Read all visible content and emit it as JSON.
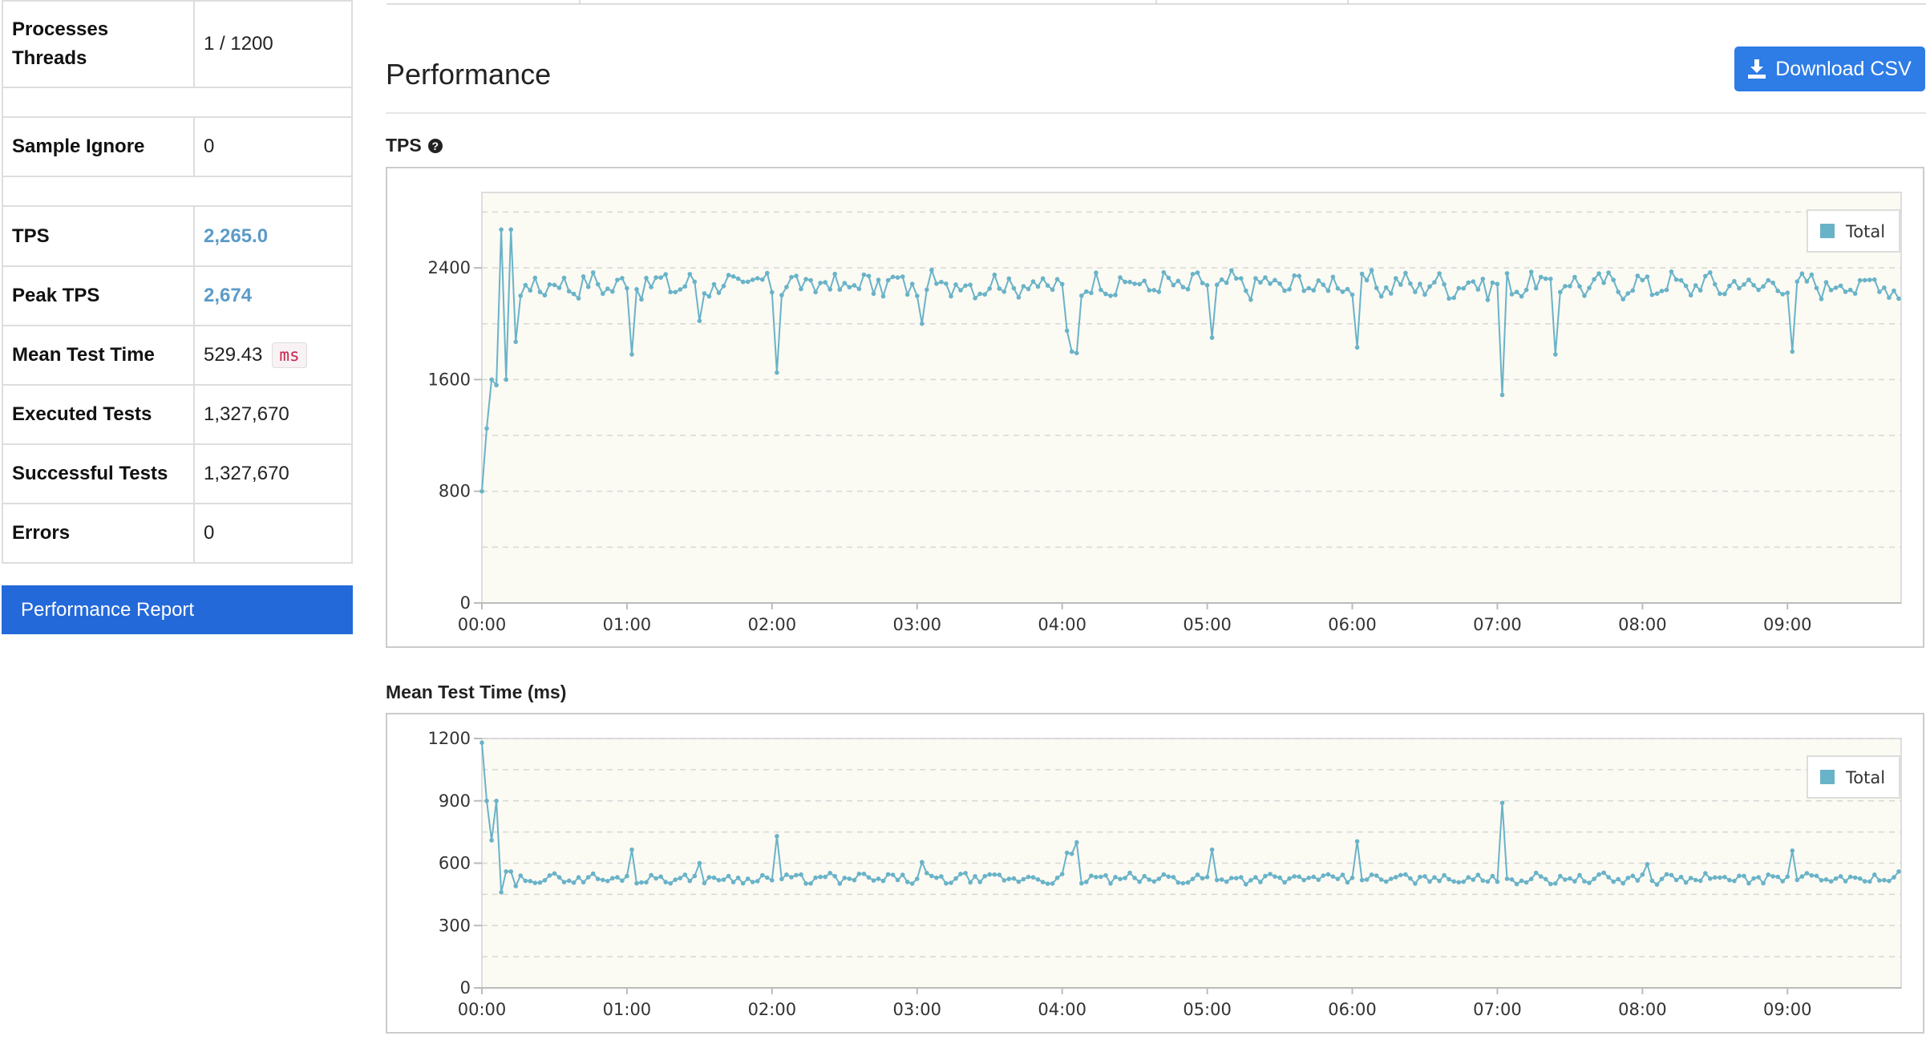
{
  "summary": {
    "rows": [
      {
        "label": "Processes\nThreads",
        "value": "1 / 1200"
      },
      {
        "label": "Sample Ignore",
        "value": "0"
      },
      {
        "label": "TPS",
        "value": "2,265.0"
      },
      {
        "label": "Peak TPS",
        "value": "2,674"
      },
      {
        "label": "Mean Test Time",
        "value": "529.43",
        "unit": "ms"
      },
      {
        "label": "Executed Tests",
        "value": "1,327,670"
      },
      {
        "label": "Successful Tests",
        "value": "1,327,670"
      },
      {
        "label": "Errors",
        "value": "0"
      }
    ],
    "report_button": "Performance Report"
  },
  "performance": {
    "title": "Performance",
    "download_button": "Download CSV",
    "download_icon": "download-icon",
    "help_icon": "question-circle-icon"
  },
  "colors": {
    "series": "#69b3c8",
    "plot_bg": "#fbfaf3",
    "button_blue": "#2e7ce6",
    "report_blue": "#2469d9",
    "link_value": "#5b9bc8",
    "badge_text": "#c7254e"
  },
  "chart_data": [
    {
      "type": "line",
      "title": "TPS",
      "legend": [
        "Total"
      ],
      "legend_position": "top-right",
      "grid": true,
      "x_ticks": [
        "00:00",
        "01:00",
        "02:00",
        "03:00",
        "04:00",
        "05:00",
        "06:00",
        "07:00",
        "08:00",
        "09:00"
      ],
      "xlim": [
        "00:00",
        "09:47"
      ],
      "x_interval_seconds": 2,
      "y_ticks": [
        "0",
        "800",
        "1600",
        "2400"
      ],
      "ylim": [
        0,
        2940
      ],
      "series": [
        {
          "name": "Total",
          "baseline": 2280,
          "initial": [
            800,
            1250,
            1600,
            1560,
            2674,
            1600,
            2674,
            1870,
            2200
          ],
          "dips": [
            {
              "x": "01:02",
              "y": 1780
            },
            {
              "x": "01:30",
              "y": 2020
            },
            {
              "x": "02:02",
              "y": 1650
            },
            {
              "x": "03:02",
              "y": 2000
            },
            {
              "x": "04:02",
              "y": 1950
            },
            {
              "x": "04:04",
              "y": 1800
            },
            {
              "x": "04:06",
              "y": 1790
            },
            {
              "x": "05:02",
              "y": 1900
            },
            {
              "x": "06:02",
              "y": 1830
            },
            {
              "x": "07:02",
              "y": 1490
            },
            {
              "x": "07:24",
              "y": 1780
            },
            {
              "x": "09:02",
              "y": 1800
            }
          ],
          "end_value": 2180
        }
      ]
    },
    {
      "type": "line",
      "title": "Mean Test Time (ms)",
      "legend": [
        "Total"
      ],
      "legend_position": "top-right",
      "grid": true,
      "x_ticks": [
        "00:00",
        "01:00",
        "02:00",
        "03:00",
        "04:00",
        "05:00",
        "06:00",
        "07:00",
        "08:00",
        "09:00"
      ],
      "xlim": [
        "00:00",
        "09:47"
      ],
      "x_interval_seconds": 2,
      "y_ticks": [
        "0",
        "300",
        "600",
        "900",
        "1200"
      ],
      "ylim": [
        0,
        1200
      ],
      "series": [
        {
          "name": "Total",
          "baseline": 525,
          "initial": [
            1180,
            900,
            710,
            900,
            460,
            560,
            560,
            490,
            540
          ],
          "spikes": [
            {
              "x": "01:02",
              "y": 665
            },
            {
              "x": "01:30",
              "y": 600
            },
            {
              "x": "02:02",
              "y": 730
            },
            {
              "x": "03:02",
              "y": 605
            },
            {
              "x": "04:02",
              "y": 650
            },
            {
              "x": "04:04",
              "y": 645
            },
            {
              "x": "04:06",
              "y": 700
            },
            {
              "x": "05:02",
              "y": 665
            },
            {
              "x": "06:02",
              "y": 705
            },
            {
              "x": "07:02",
              "y": 890
            },
            {
              "x": "08:02",
              "y": 595
            },
            {
              "x": "09:02",
              "y": 660
            }
          ],
          "end_value": 560
        }
      ]
    }
  ]
}
